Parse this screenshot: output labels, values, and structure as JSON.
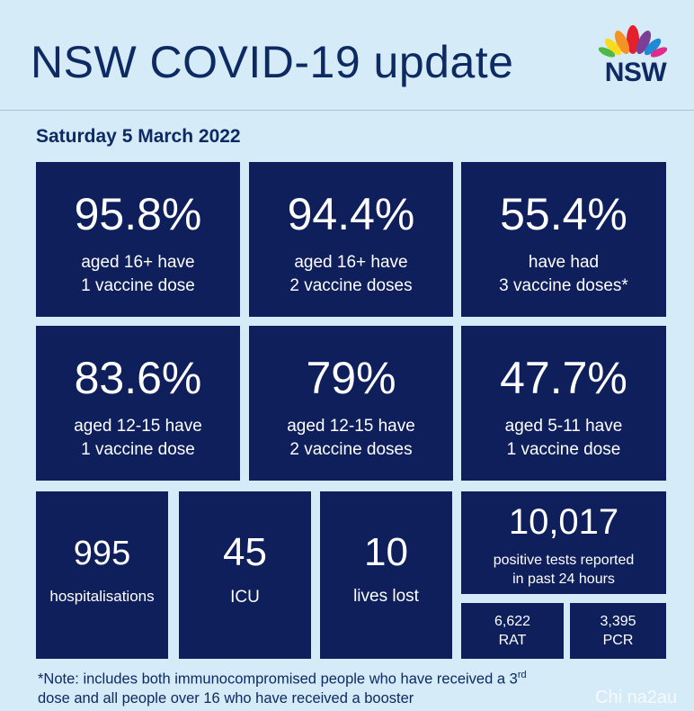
{
  "header": {
    "title": "NSW COVID-19 update",
    "logo_text": "NSW"
  },
  "date": "Saturday 5 March 2022",
  "vaccination_tiles": [
    {
      "value": "95.8%",
      "line1": "aged 16+ have",
      "line2": "1 vaccine dose"
    },
    {
      "value": "94.4%",
      "line1": "aged 16+ have",
      "line2": "2 vaccine doses"
    },
    {
      "value": "55.4%",
      "line1": "have had",
      "line2": "3 vaccine doses*"
    },
    {
      "value": "83.6%",
      "line1": "aged 12-15 have",
      "line2": "1 vaccine dose"
    },
    {
      "value": "79%",
      "line1": "aged 12-15 have",
      "line2": "2 vaccine doses"
    },
    {
      "value": "47.7%",
      "line1": "aged 5-11 have",
      "line2": "1 vaccine dose"
    }
  ],
  "stats": {
    "hospitalisations": {
      "value": "995",
      "label": "hospitalisations"
    },
    "icu": {
      "value": "45",
      "label": "ICU"
    },
    "lives_lost": {
      "value": "10",
      "label": "lives lost"
    },
    "positive_tests": {
      "value": "10,017",
      "line1": "positive tests reported",
      "line2": "in past 24 hours"
    },
    "rat": {
      "value": "6,622",
      "label": "RAT"
    },
    "pcr": {
      "value": "3,395",
      "label": "PCR"
    }
  },
  "note": {
    "part1": "*Note: includes both immunocompromised  people who have received a 3",
    "sup": "rd",
    "part2": "dose and all people over 16 who have received a booster"
  },
  "watermark": "Chi na2au",
  "colors": {
    "background": "#d6ebf8",
    "tile": "#0e1f5b",
    "text_dark": "#0d2a63",
    "waratah_red": "#e4202e",
    "waratah_orange": "#f39323",
    "waratah_yellow": "#f9dc1c",
    "waratah_green": "#4fb848",
    "waratah_blue": "#1f8ad6",
    "waratah_purple": "#7b3f98"
  }
}
